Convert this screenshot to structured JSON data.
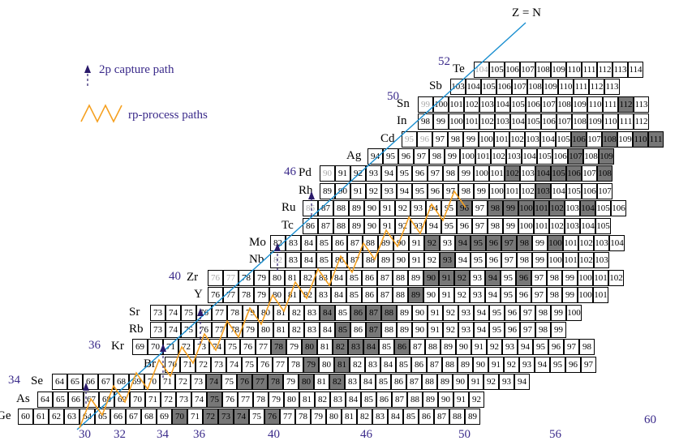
{
  "legend": {
    "capture_label": "2p capture path",
    "rp_label": "rp-process paths",
    "zn_label": "Z = N"
  },
  "colors": {
    "rp_path": "#f5a020",
    "zn_line": "#1a8fd0",
    "capture_arrow": "#2a1a6a",
    "stable_fill": "#777777",
    "label_color": "#3a2a8a"
  },
  "z_labels": [
    "34",
    "36",
    "40",
    "46",
    "50",
    "52"
  ],
  "n_labels": [
    "30",
    "32",
    "34",
    "36",
    "40",
    "46",
    "50",
    "56",
    "60"
  ],
  "rows": [
    {
      "symbol": "Ge",
      "cells": [
        "60",
        "61",
        "62",
        "63",
        "64",
        "65",
        "66",
        "67",
        "68",
        "69",
        "70",
        "71",
        "72",
        "73",
        "74",
        "75",
        "76",
        "77",
        "78",
        "79",
        "80",
        "81",
        "82",
        "83",
        "84",
        "85",
        "86",
        "87",
        "88",
        "89"
      ]
    },
    {
      "symbol": "As",
      "cells": [
        "64",
        "65",
        "66",
        "67",
        "68",
        "69",
        "70",
        "71",
        "72",
        "73",
        "74",
        "75",
        "76",
        "77",
        "78",
        "79",
        "80",
        "81",
        "82",
        "83",
        "84",
        "85",
        "86",
        "87",
        "88",
        "89",
        "90",
        "91",
        "92"
      ]
    },
    {
      "symbol": "Se",
      "cells": [
        "64",
        "65",
        "66",
        "67",
        "68",
        "69",
        "70",
        "71",
        "72",
        "73",
        "74",
        "75",
        "76",
        "77",
        "78",
        "79",
        "80",
        "81",
        "82",
        "83",
        "84",
        "85",
        "86",
        "87",
        "88",
        "89",
        "90",
        "91",
        "92",
        "93",
        "94"
      ]
    },
    {
      "symbol": "Br",
      "cells": [
        "70",
        "71",
        "72",
        "73",
        "74",
        "75",
        "76",
        "77",
        "78",
        "79",
        "80",
        "81",
        "82",
        "83",
        "84",
        "85",
        "86",
        "87",
        "88",
        "89",
        "90",
        "91",
        "92",
        "93",
        "94",
        "95",
        "96",
        "97"
      ]
    },
    {
      "symbol": "Kr",
      "cells": [
        "69",
        "70",
        "71",
        "72",
        "73",
        "74",
        "75",
        "76",
        "77",
        "78",
        "79",
        "80",
        "81",
        "82",
        "83",
        "84",
        "85",
        "86",
        "87",
        "88",
        "89",
        "90",
        "91",
        "92",
        "93",
        "94",
        "95",
        "96",
        "97",
        "98"
      ]
    },
    {
      "symbol": "Rb",
      "cells": [
        "73",
        "74",
        "75",
        "76",
        "77",
        "78",
        "79",
        "80",
        "81",
        "82",
        "83",
        "84",
        "85",
        "86",
        "87",
        "88",
        "89",
        "90",
        "91",
        "92",
        "93",
        "94",
        "95",
        "96",
        "97",
        "98",
        "99"
      ]
    },
    {
      "symbol": "Sr",
      "cells": [
        "73",
        "74",
        "75",
        "76",
        "77",
        "78",
        "79",
        "80",
        "81",
        "82",
        "83",
        "84",
        "85",
        "86",
        "87",
        "88",
        "89",
        "90",
        "91",
        "92",
        "93",
        "94",
        "95",
        "96",
        "97",
        "98",
        "99",
        "100"
      ]
    },
    {
      "symbol": "Y",
      "cells": [
        "76",
        "77",
        "78",
        "79",
        "80",
        "81",
        "82",
        "83",
        "84",
        "85",
        "86",
        "87",
        "88",
        "89",
        "90",
        "91",
        "92",
        "93",
        "94",
        "95",
        "96",
        "97",
        "98",
        "99",
        "100",
        "101"
      ]
    },
    {
      "symbol": "Zr",
      "cells": [
        "76",
        "77",
        "78",
        "79",
        "80",
        "81",
        "82",
        "83",
        "84",
        "85",
        "86",
        "87",
        "88",
        "89",
        "90",
        "91",
        "92",
        "93",
        "94",
        "95",
        "96",
        "97",
        "98",
        "99",
        "100",
        "101",
        "102"
      ]
    },
    {
      "symbol": "Nb",
      "cells": [
        "82",
        "83",
        "84",
        "85",
        "86",
        "87",
        "88",
        "89",
        "90",
        "91",
        "92",
        "93",
        "94",
        "95",
        "96",
        "97",
        "98",
        "99",
        "100",
        "101",
        "102",
        "103"
      ]
    },
    {
      "symbol": "Mo",
      "cells": [
        "82",
        "83",
        "84",
        "85",
        "86",
        "87",
        "88",
        "89",
        "90",
        "91",
        "92",
        "93",
        "94",
        "95",
        "96",
        "97",
        "98",
        "99",
        "100",
        "101",
        "102",
        "103",
        "104"
      ]
    },
    {
      "symbol": "Tc",
      "cells": [
        "86",
        "87",
        "88",
        "89",
        "90",
        "91",
        "92",
        "93",
        "94",
        "95",
        "96",
        "97",
        "98",
        "99",
        "100",
        "101",
        "102",
        "103",
        "104",
        "105"
      ]
    },
    {
      "symbol": "Ru",
      "cells": [
        "86",
        "87",
        "88",
        "89",
        "90",
        "91",
        "92",
        "93",
        "94",
        "95",
        "96",
        "97",
        "98",
        "99",
        "100",
        "101",
        "102",
        "103",
        "104",
        "105",
        "106"
      ]
    },
    {
      "symbol": "Rh",
      "cells": [
        "89",
        "90",
        "91",
        "92",
        "93",
        "94",
        "95",
        "96",
        "97",
        "98",
        "99",
        "100",
        "101",
        "102",
        "103",
        "104",
        "105",
        "106",
        "107"
      ]
    },
    {
      "symbol": "Pd",
      "cells": [
        "90",
        "91",
        "92",
        "93",
        "94",
        "95",
        "96",
        "97",
        "98",
        "99",
        "100",
        "101",
        "102",
        "103",
        "104",
        "105",
        "106",
        "107",
        "108"
      ]
    },
    {
      "symbol": "Ag",
      "cells": [
        "94",
        "95",
        "96",
        "97",
        "98",
        "99",
        "100",
        "101",
        "102",
        "103",
        "104",
        "105",
        "106",
        "107",
        "108",
        "109"
      ]
    },
    {
      "symbol": "Cd",
      "cells": [
        "95",
        "96",
        "97",
        "98",
        "99",
        "100",
        "101",
        "102",
        "103",
        "104",
        "105",
        "106",
        "107",
        "108",
        "109",
        "110",
        "111"
      ]
    },
    {
      "symbol": "In",
      "cells": [
        "98",
        "99",
        "100",
        "101",
        "102",
        "103",
        "104",
        "105",
        "106",
        "107",
        "108",
        "109",
        "110",
        "111",
        "112"
      ]
    },
    {
      "symbol": "Sn",
      "cells": [
        "99",
        "100",
        "101",
        "102",
        "103",
        "104",
        "105",
        "106",
        "107",
        "108",
        "109",
        "110",
        "111",
        "112",
        "113"
      ]
    },
    {
      "symbol": "Sb",
      "cells": [
        "103",
        "104",
        "105",
        "106",
        "107",
        "108",
        "109",
        "110",
        "111",
        "112",
        "113"
      ]
    },
    {
      "symbol": "Te",
      "cells": [
        "104",
        "105",
        "106",
        "107",
        "108",
        "109",
        "110",
        "111",
        "112",
        "113",
        "114"
      ]
    }
  ]
}
